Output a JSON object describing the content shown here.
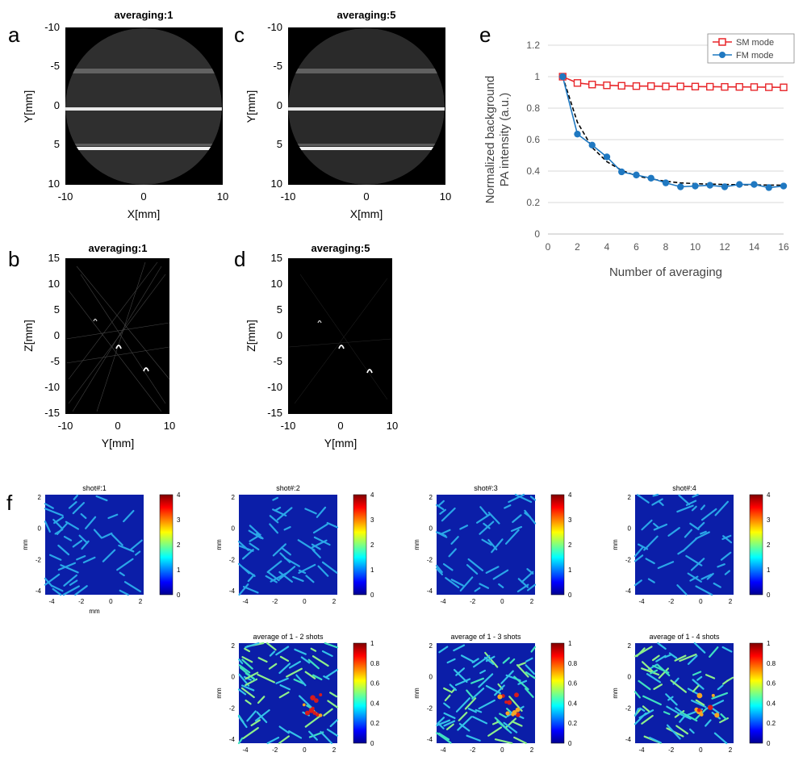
{
  "panels": {
    "a": "a",
    "b": "b",
    "c": "c",
    "d": "d",
    "e": "e",
    "f": "f"
  },
  "panel_a": {
    "title": "averaging:1",
    "xlabel": "X[mm]",
    "ylabel": "Y[mm]",
    "xticks": [
      "-10",
      "0",
      "10"
    ],
    "yticks": [
      "-10",
      "-5",
      "0",
      "5",
      "10"
    ]
  },
  "panel_c": {
    "title": "averaging:5",
    "xlabel": "X[mm]",
    "ylabel": "Y[mm]",
    "xticks": [
      "-10",
      "0",
      "10"
    ],
    "yticks": [
      "-10",
      "-5",
      "0",
      "5",
      "10"
    ]
  },
  "panel_b": {
    "title": "averaging:1",
    "xlabel": "Y[mm]",
    "ylabel": "Z[mm]",
    "xticks": [
      "-10",
      "0",
      "10"
    ],
    "yticks": [
      "15",
      "10",
      "5",
      "0",
      "-5",
      "-10",
      "-15"
    ]
  },
  "panel_d": {
    "title": "averaging:5",
    "xlabel": "Y[mm]",
    "ylabel": "Z[mm]",
    "xticks": [
      "-10",
      "0",
      "10"
    ],
    "yticks": [
      "15",
      "10",
      "5",
      "0",
      "-5",
      "-10",
      "-15"
    ]
  },
  "panel_f": {
    "shots": [
      "shot#:1",
      "shot#:2",
      "shot#:3",
      "shot#:4"
    ],
    "averages": [
      "average of 1 - 2 shots",
      "average of 1 - 3 shots",
      "average of 1 - 4 shots"
    ],
    "axis_label": "mm",
    "xticks": [
      "-4",
      "-2",
      "0",
      "2"
    ],
    "yticks": [
      "2",
      "0",
      "-2",
      "-4"
    ],
    "shot_cbar": [
      "4",
      "3",
      "2",
      "1",
      "0"
    ],
    "avg_cbar": [
      "1",
      "0.8",
      "0.6",
      "0.4",
      "0.2",
      "0"
    ]
  },
  "chart_data": {
    "type": "line",
    "xlabel": "Number of averaging",
    "ylabel_line1": "Normalized background",
    "ylabel_line2": "PA intensity (a.u.)",
    "xlim": [
      0,
      16
    ],
    "ylim": [
      0,
      1.2
    ],
    "xticks": [
      0,
      2,
      4,
      6,
      8,
      10,
      12,
      14,
      16
    ],
    "yticks": [
      0,
      0.2,
      0.4,
      0.6,
      0.8,
      1,
      1.2
    ],
    "x": [
      1,
      2,
      3,
      4,
      5,
      6,
      7,
      8,
      9,
      10,
      11,
      12,
      13,
      14,
      15,
      16
    ],
    "series": [
      {
        "name": "SM mode",
        "color": "#e8262a",
        "marker": "open-square",
        "values": [
          1.0,
          0.96,
          0.95,
          0.945,
          0.942,
          0.94,
          0.94,
          0.938,
          0.938,
          0.937,
          0.936,
          0.935,
          0.935,
          0.934,
          0.933,
          0.932
        ]
      },
      {
        "name": "FM mode",
        "color": "#1f78c1",
        "marker": "filled-circle",
        "values": [
          1.0,
          0.635,
          0.565,
          0.49,
          0.395,
          0.375,
          0.355,
          0.325,
          0.3,
          0.305,
          0.31,
          0.3,
          0.315,
          0.315,
          0.295,
          0.305
        ]
      }
    ],
    "fit": {
      "style": "dashed",
      "color": "#000000",
      "values": [
        1.0,
        0.71,
        0.55,
        0.46,
        0.405,
        0.37,
        0.35,
        0.335,
        0.325,
        0.32,
        0.317,
        0.315,
        0.313,
        0.312,
        0.311,
        0.31
      ]
    },
    "legend": "top-right"
  }
}
